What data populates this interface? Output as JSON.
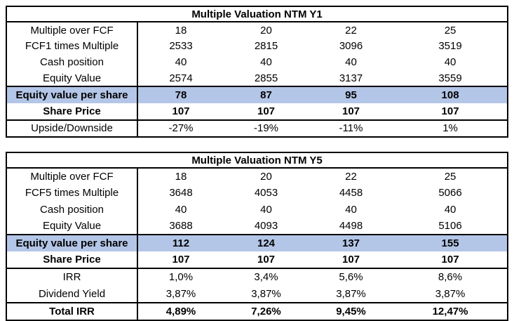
{
  "accent_color": "#B4C6E7",
  "border_color": "#000000",
  "tables": [
    {
      "title": "Multiple Valuation NTM Y1",
      "rows": [
        {
          "label": "Multiple over FCF",
          "values": [
            "18",
            "20",
            "22",
            "25"
          ],
          "style": "normal",
          "rule_above": false
        },
        {
          "label": "FCF1 times Multiple",
          "values": [
            "2533",
            "2815",
            "3096",
            "3519"
          ],
          "style": "normal",
          "rule_above": false
        },
        {
          "label": "Cash position",
          "values": [
            "40",
            "40",
            "40",
            "40"
          ],
          "style": "normal",
          "rule_above": false
        },
        {
          "label": "Equity Value",
          "values": [
            "2574",
            "2855",
            "3137",
            "3559"
          ],
          "style": "normal",
          "rule_above": false
        },
        {
          "label": "Equity value per share",
          "values": [
            "78",
            "87",
            "95",
            "108"
          ],
          "style": "highlight",
          "rule_above": true
        },
        {
          "label": "Share Price",
          "values": [
            "107",
            "107",
            "107",
            "107"
          ],
          "style": "bold",
          "rule_above": false
        },
        {
          "label": "Upside/Downside",
          "values": [
            "-27%",
            "-19%",
            "-11%",
            "1%"
          ],
          "style": "normal",
          "rule_above": true
        }
      ]
    },
    {
      "title": "Multiple Valuation NTM Y5",
      "rows": [
        {
          "label": "Multiple over FCF",
          "values": [
            "18",
            "20",
            "22",
            "25"
          ],
          "style": "normal",
          "rule_above": false
        },
        {
          "label": "FCF5 times Multiple",
          "values": [
            "3648",
            "4053",
            "4458",
            "5066"
          ],
          "style": "normal",
          "rule_above": false
        },
        {
          "label": "Cash position",
          "values": [
            "40",
            "40",
            "40",
            "40"
          ],
          "style": "normal",
          "rule_above": false
        },
        {
          "label": "Equity Value",
          "values": [
            "3688",
            "4093",
            "4498",
            "5106"
          ],
          "style": "normal",
          "rule_above": false
        },
        {
          "label": "Equity value per share",
          "values": [
            "112",
            "124",
            "137",
            "155"
          ],
          "style": "highlight",
          "rule_above": true
        },
        {
          "label": "Share Price",
          "values": [
            "107",
            "107",
            "107",
            "107"
          ],
          "style": "bold",
          "rule_above": false
        },
        {
          "label": "IRR",
          "values": [
            "1,0%",
            "3,4%",
            "5,6%",
            "8,6%"
          ],
          "style": "normal",
          "rule_above": true
        },
        {
          "label": "Dividend Yield",
          "values": [
            "3,87%",
            "3,87%",
            "3,87%",
            "3,87%"
          ],
          "style": "normal",
          "rule_above": false
        },
        {
          "label": "Total IRR",
          "values": [
            "4,89%",
            "7,26%",
            "9,45%",
            "12,47%"
          ],
          "style": "bold",
          "rule_above": true
        }
      ]
    }
  ]
}
